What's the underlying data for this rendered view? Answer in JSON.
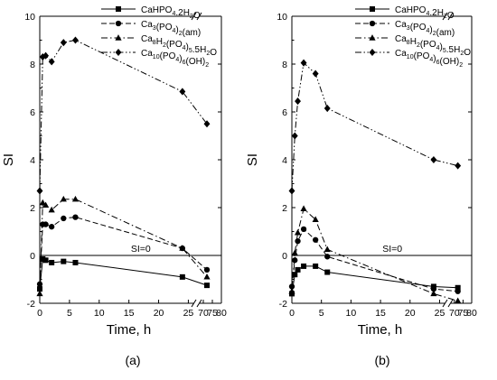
{
  "chart_data": [
    {
      "type": "line",
      "panel_label": "(a)",
      "xlabel": "Time, h",
      "ylabel": "SI",
      "xlim": [
        0,
        80
      ],
      "ylim": [
        -2,
        10
      ],
      "xticks": [
        "0",
        "5",
        "10",
        "15",
        "20",
        "25",
        "70",
        "75",
        "80"
      ],
      "yticks": [
        "-2",
        "0",
        "2",
        "4",
        "6",
        "8",
        "10"
      ],
      "axis_break": true,
      "reference_line": {
        "label": "SI=0",
        "y": 0
      },
      "legend": "top-right",
      "series": [
        {
          "name": "CaHPO4.2H2O",
          "marker": "square",
          "dash": "solid",
          "x": [
            0,
            0.5,
            1,
            2,
            4,
            6,
            24,
            72
          ],
          "y": [
            -1.4,
            -0.15,
            -0.2,
            -0.3,
            -0.25,
            -0.3,
            -0.9,
            -1.25
          ]
        },
        {
          "name": "Ca3(PO4)2(am)",
          "marker": "circle",
          "dash": "dashed",
          "x": [
            0,
            0.5,
            1,
            2,
            4,
            6,
            24,
            72
          ],
          "y": [
            -1.2,
            1.3,
            1.3,
            1.2,
            1.55,
            1.6,
            0.3,
            -0.6
          ]
        },
        {
          "name": "Ca8H2(PO4)5.5H2O",
          "marker": "triangle",
          "dash": "dashdot",
          "x": [
            0,
            0.5,
            1,
            2,
            4,
            6,
            24,
            72
          ],
          "y": [
            -1.6,
            2.2,
            2.1,
            1.9,
            2.35,
            2.35,
            0.3,
            -0.9
          ]
        },
        {
          "name": "Ca10(PO4)6(OH)2",
          "marker": "diamond",
          "dash": "dashdotdot",
          "x": [
            0,
            0.5,
            1,
            2,
            4,
            6,
            24,
            72
          ],
          "y": [
            2.7,
            8.3,
            8.35,
            8.1,
            8.9,
            9.0,
            6.85,
            5.5
          ]
        }
      ]
    },
    {
      "type": "line",
      "panel_label": "(b)",
      "xlabel": "Time, h",
      "ylabel": "SI",
      "xlim": [
        0,
        80
      ],
      "ylim": [
        -2,
        10
      ],
      "xticks": [
        "0",
        "5",
        "10",
        "15",
        "20",
        "25",
        "70",
        "75",
        "80"
      ],
      "yticks": [
        "-2",
        "0",
        "2",
        "4",
        "6",
        "8",
        "10"
      ],
      "axis_break": true,
      "reference_line": {
        "label": "SI=0",
        "y": 0
      },
      "legend": "top-right",
      "series": [
        {
          "name": "CaHPO4.2H2O",
          "marker": "square",
          "dash": "solid",
          "x": [
            0,
            0.5,
            1,
            2,
            4,
            6,
            24,
            72
          ],
          "y": [
            -1.6,
            -0.8,
            -0.6,
            -0.45,
            -0.45,
            -0.7,
            -1.3,
            -1.35
          ]
        },
        {
          "name": "Ca3(PO4)2(am)",
          "marker": "circle",
          "dash": "dashed",
          "x": [
            0,
            0.5,
            1,
            2,
            4,
            6,
            24,
            72
          ],
          "y": [
            -1.3,
            -0.2,
            0.6,
            1.1,
            0.65,
            -0.05,
            -1.4,
            -1.5
          ]
        },
        {
          "name": "Ca8H2(PO4)5.5H2O",
          "marker": "triangle",
          "dash": "dashdot",
          "x": [
            0,
            0.5,
            1,
            2,
            4,
            6,
            24,
            72
          ],
          "y": [
            -1.5,
            0.1,
            0.95,
            1.95,
            1.5,
            0.25,
            -1.6,
            -1.9
          ]
        },
        {
          "name": "Ca10(PO4)6(OH)2",
          "marker": "diamond",
          "dash": "dashdotdot",
          "x": [
            0,
            0.5,
            1,
            2,
            4,
            6,
            24,
            72
          ],
          "y": [
            2.7,
            5.0,
            6.45,
            8.05,
            7.6,
            6.15,
            4.0,
            3.75
          ]
        }
      ]
    }
  ]
}
